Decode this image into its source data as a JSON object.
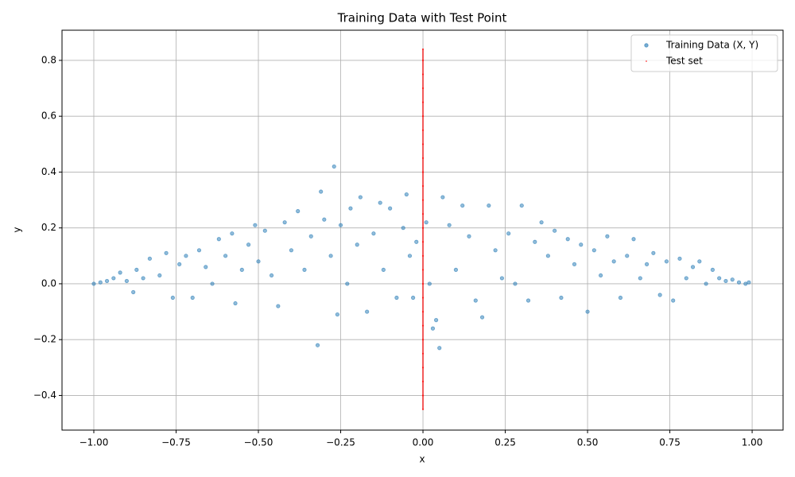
{
  "chart_data": {
    "type": "scatter",
    "title": "Training Data with Test Point",
    "x_label": "x",
    "y_label": "y",
    "xlim": [
      -1.0966,
      1.094
    ],
    "ylim": [
      -0.524,
      0.908
    ],
    "xticks": [
      {
        "value": -1,
        "label": "−1.00"
      },
      {
        "value": -0.75,
        "label": "−0.75"
      },
      {
        "value": -0.5,
        "label": "−0.50"
      },
      {
        "value": -0.25,
        "label": "−0.25"
      },
      {
        "value": 0,
        "label": "0.00"
      },
      {
        "value": 0.25,
        "label": "0.25"
      },
      {
        "value": 0.5,
        "label": "0.50"
      },
      {
        "value": 0.75,
        "label": "0.75"
      },
      {
        "value": 1,
        "label": "1.00"
      }
    ],
    "yticks": [
      {
        "value": -0.4,
        "label": "−0.4"
      },
      {
        "value": -0.2,
        "label": "−0.2"
      },
      {
        "value": 0,
        "label": "0.0"
      },
      0.2,
      0.4,
      0.6,
      0.8
    ],
    "grid": true,
    "legend": "upper-right",
    "series": [
      {
        "name": "Training Data (X, Y)",
        "color": "#1f77b4",
        "x": [
          -1.0,
          -0.98,
          -0.96,
          -0.94,
          -0.92,
          -0.9,
          -0.88,
          -0.87,
          -0.85,
          -0.83,
          -0.8,
          -0.78,
          -0.76,
          -0.74,
          -0.72,
          -0.7,
          -0.68,
          -0.66,
          -0.64,
          -0.62,
          -0.6,
          -0.58,
          -0.57,
          -0.55,
          -0.53,
          -0.51,
          -0.5,
          -0.48,
          -0.46,
          -0.44,
          -0.42,
          -0.4,
          -0.38,
          -0.36,
          -0.34,
          -0.32,
          -0.31,
          -0.3,
          -0.28,
          -0.27,
          -0.26,
          -0.25,
          -0.23,
          -0.22,
          -0.2,
          -0.19,
          -0.17,
          -0.15,
          -0.13,
          -0.12,
          -0.1,
          -0.08,
          -0.06,
          -0.05,
          -0.04,
          -0.03,
          -0.02,
          0.01,
          0.02,
          0.03,
          0.04,
          0.05,
          0.06,
          0.08,
          0.1,
          0.12,
          0.14,
          0.16,
          0.18,
          0.2,
          0.22,
          0.24,
          0.26,
          0.28,
          0.3,
          0.32,
          0.34,
          0.36,
          0.38,
          0.4,
          0.42,
          0.44,
          0.46,
          0.48,
          0.5,
          0.52,
          0.54,
          0.56,
          0.58,
          0.6,
          0.62,
          0.64,
          0.66,
          0.68,
          0.7,
          0.72,
          0.74,
          0.76,
          0.78,
          0.8,
          0.82,
          0.84,
          0.86,
          0.88,
          0.9,
          0.92,
          0.94,
          0.96,
          0.98,
          0.99
        ],
        "values": [
          0.0,
          0.005,
          0.01,
          0.02,
          0.04,
          0.01,
          -0.03,
          0.05,
          0.02,
          0.09,
          0.03,
          0.11,
          -0.05,
          0.07,
          0.1,
          -0.05,
          0.12,
          0.06,
          0.0,
          0.16,
          0.1,
          0.18,
          -0.07,
          0.05,
          0.14,
          0.21,
          0.08,
          0.19,
          0.03,
          -0.08,
          0.22,
          0.12,
          0.26,
          0.05,
          0.17,
          -0.22,
          0.33,
          0.23,
          0.1,
          0.42,
          -0.11,
          0.21,
          0.0,
          0.27,
          0.14,
          0.31,
          -0.1,
          0.18,
          0.29,
          0.05,
          0.27,
          -0.05,
          0.2,
          0.32,
          0.1,
          -0.05,
          0.15,
          0.22,
          0.0,
          -0.16,
          -0.13,
          -0.23,
          0.31,
          0.21,
          0.05,
          0.28,
          0.17,
          -0.06,
          -0.12,
          0.28,
          0.12,
          0.02,
          0.18,
          0.0,
          0.28,
          -0.06,
          0.15,
          0.22,
          0.1,
          0.19,
          -0.05,
          0.16,
          0.07,
          0.14,
          -0.1,
          0.12,
          0.03,
          0.17,
          0.08,
          -0.05,
          0.1,
          0.16,
          0.02,
          0.07,
          0.11,
          -0.04,
          0.08,
          -0.06,
          0.09,
          0.02,
          0.06,
          0.08,
          0.0,
          0.05,
          0.02,
          0.01,
          0.015,
          0.005,
          0.0,
          0.005
        ]
      },
      {
        "name": "Test set",
        "color": "#ff0000",
        "x": [
          0,
          0,
          0,
          0,
          0,
          0,
          0,
          0,
          0,
          0,
          0,
          0,
          0,
          0,
          0,
          0,
          0,
          0,
          0,
          0,
          0,
          0,
          0,
          0,
          0,
          0,
          0
        ],
        "values": [
          -0.45,
          -0.4,
          -0.35,
          -0.3,
          -0.25,
          -0.2,
          -0.15,
          -0.1,
          -0.05,
          0.0,
          0.05,
          0.1,
          0.15,
          0.2,
          0.25,
          0.3,
          0.35,
          0.4,
          0.45,
          0.5,
          0.55,
          0.6,
          0.65,
          0.7,
          0.75,
          0.8,
          0.84
        ]
      }
    ]
  }
}
